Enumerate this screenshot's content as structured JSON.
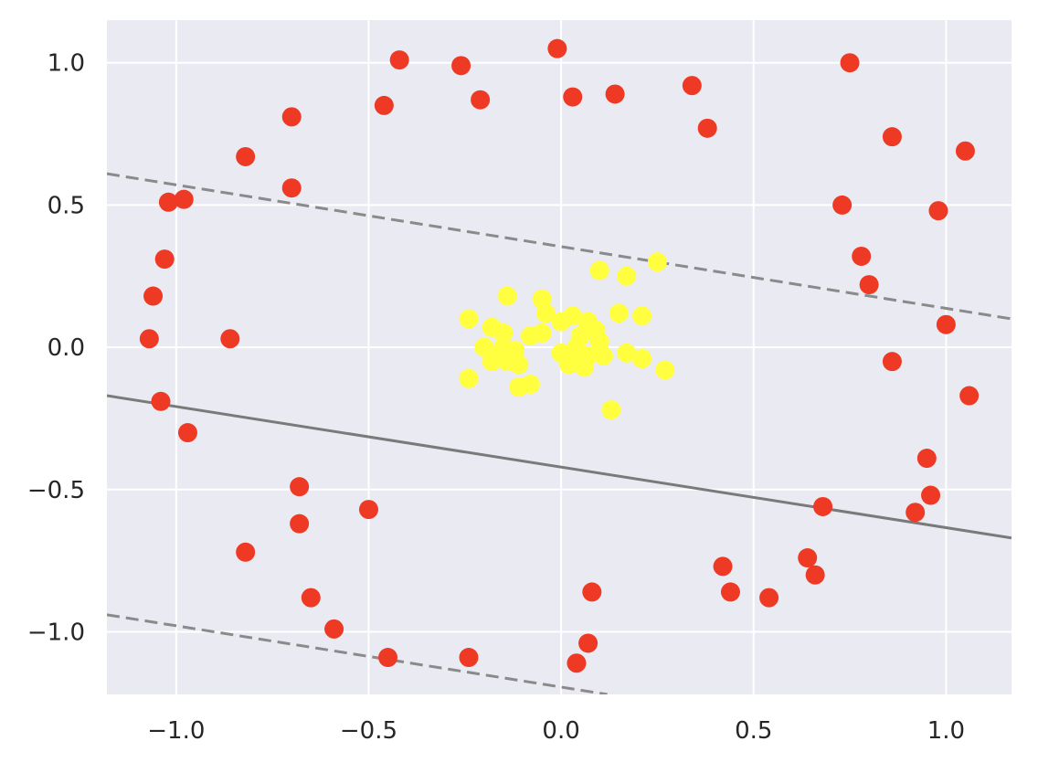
{
  "chart_data": {
    "type": "scatter",
    "title": "",
    "xlabel": "",
    "ylabel": "",
    "xlim": [
      -1.18,
      1.17
    ],
    "ylim": [
      -1.22,
      1.15
    ],
    "grid": true,
    "legend": "none",
    "x_ticks": [
      {
        "value": -1.0,
        "label": "−1.0"
      },
      {
        "value": -0.5,
        "label": "−0.5"
      },
      {
        "value": 0.0,
        "label": "0.0"
      },
      {
        "value": 0.5,
        "label": "0.5"
      },
      {
        "value": 1.0,
        "label": "1.0"
      }
    ],
    "y_ticks": [
      {
        "value": 1.0,
        "label": "1.0"
      },
      {
        "value": 0.5,
        "label": "0.5"
      },
      {
        "value": 0.0,
        "label": "0.0"
      },
      {
        "value": -0.5,
        "label": "−0.5"
      },
      {
        "value": -1.0,
        "label": "−1.0"
      }
    ],
    "colors": {
      "background": "#eaeaf2",
      "grid": "#ffffff",
      "outer_class": "#ee3a24",
      "inner_class": "#ffff3f",
      "boundary": "#7a7a7a",
      "margin": "#8a8a8a"
    },
    "series": [
      {
        "color_key": "outer_class",
        "points": [
          [
            -0.01,
            1.05
          ],
          [
            -0.42,
            1.01
          ],
          [
            -0.26,
            0.99
          ],
          [
            -0.21,
            0.87
          ],
          [
            0.03,
            0.88
          ],
          [
            0.14,
            0.89
          ],
          [
            0.34,
            0.92
          ],
          [
            0.38,
            0.77
          ],
          [
            0.75,
            1.0
          ],
          [
            -0.46,
            0.85
          ],
          [
            -0.7,
            0.81
          ],
          [
            -0.82,
            0.67
          ],
          [
            -0.7,
            0.56
          ],
          [
            -0.98,
            0.52
          ],
          [
            -1.02,
            0.51
          ],
          [
            -1.03,
            0.31
          ],
          [
            -1.06,
            0.18
          ],
          [
            -1.07,
            0.03
          ],
          [
            -0.86,
            0.03
          ],
          [
            -1.04,
            -0.19
          ],
          [
            -0.97,
            -0.3
          ],
          [
            0.86,
            0.74
          ],
          [
            1.05,
            0.69
          ],
          [
            0.73,
            0.5
          ],
          [
            0.98,
            0.48
          ],
          [
            0.78,
            0.32
          ],
          [
            0.8,
            0.22
          ],
          [
            1.0,
            0.08
          ],
          [
            0.86,
            -0.05
          ],
          [
            1.06,
            -0.17
          ],
          [
            0.95,
            -0.39
          ],
          [
            0.96,
            -0.52
          ],
          [
            0.92,
            -0.58
          ],
          [
            0.68,
            -0.56
          ],
          [
            -0.68,
            -0.49
          ],
          [
            -0.68,
            -0.62
          ],
          [
            -0.5,
            -0.57
          ],
          [
            -0.82,
            -0.72
          ],
          [
            -0.65,
            -0.88
          ],
          [
            -0.59,
            -0.99
          ],
          [
            -0.45,
            -1.09
          ],
          [
            -0.24,
            -1.09
          ],
          [
            0.04,
            -1.11
          ],
          [
            0.07,
            -1.04
          ],
          [
            0.08,
            -0.86
          ],
          [
            0.42,
            -0.77
          ],
          [
            0.44,
            -0.86
          ],
          [
            0.54,
            -0.88
          ],
          [
            0.64,
            -0.74
          ],
          [
            0.66,
            -0.8
          ]
        ]
      },
      {
        "color_key": "inner_class",
        "points": [
          [
            0.25,
            0.3
          ],
          [
            0.1,
            0.27
          ],
          [
            0.17,
            0.25
          ],
          [
            -0.14,
            0.18
          ],
          [
            -0.05,
            0.17
          ],
          [
            -0.04,
            0.12
          ],
          [
            0.15,
            0.12
          ],
          [
            0.21,
            0.11
          ],
          [
            -0.24,
            0.1
          ],
          [
            0.03,
            0.11
          ],
          [
            0.0,
            0.09
          ],
          [
            0.07,
            0.09
          ],
          [
            -0.18,
            0.07
          ],
          [
            -0.15,
            0.05
          ],
          [
            0.09,
            0.06
          ],
          [
            -0.08,
            0.04
          ],
          [
            -0.05,
            0.05
          ],
          [
            0.05,
            0.04
          ],
          [
            0.04,
            0.0
          ],
          [
            0.1,
            0.02
          ],
          [
            -0.2,
            0.0
          ],
          [
            -0.15,
            0.0
          ],
          [
            -0.12,
            -0.01
          ],
          [
            -0.17,
            -0.03
          ],
          [
            0.0,
            -0.02
          ],
          [
            0.03,
            -0.04
          ],
          [
            0.07,
            -0.03
          ],
          [
            0.11,
            -0.03
          ],
          [
            0.17,
            -0.02
          ],
          [
            0.21,
            -0.04
          ],
          [
            -0.14,
            -0.05
          ],
          [
            -0.18,
            -0.05
          ],
          [
            -0.11,
            -0.06
          ],
          [
            0.06,
            -0.07
          ],
          [
            0.02,
            -0.06
          ],
          [
            0.27,
            -0.08
          ],
          [
            -0.24,
            -0.11
          ],
          [
            -0.08,
            -0.13
          ],
          [
            -0.11,
            -0.14
          ],
          [
            0.13,
            -0.22
          ]
        ]
      }
    ],
    "lines": [
      {
        "style": "solid",
        "color_key": "boundary",
        "from": [
          -1.18,
          -0.17
        ],
        "to": [
          1.17,
          -0.67
        ]
      },
      {
        "style": "dashed",
        "color_key": "margin",
        "from": [
          -1.18,
          0.61
        ],
        "to": [
          1.17,
          0.1
        ]
      },
      {
        "style": "dashed",
        "color_key": "margin",
        "from": [
          -1.18,
          -0.94
        ],
        "to": [
          0.12,
          -1.22
        ]
      }
    ]
  }
}
